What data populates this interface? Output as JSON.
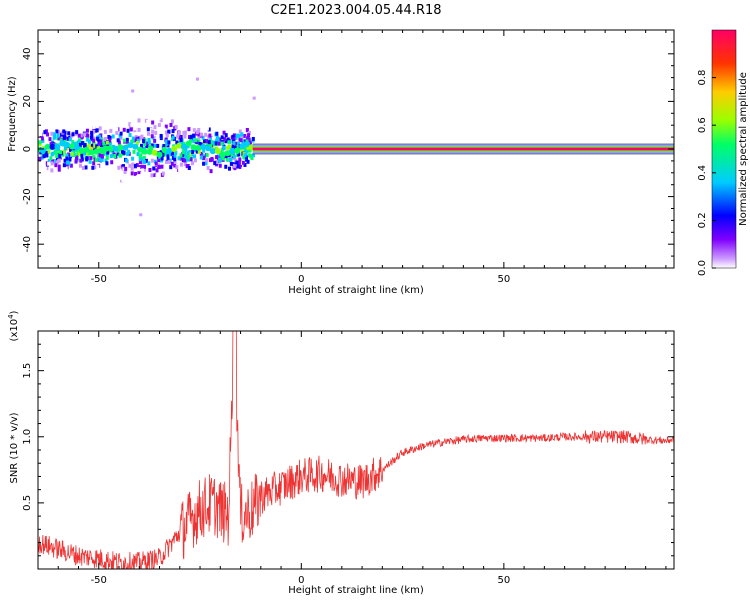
{
  "title": "C2E1.2023.004.05.44.R18",
  "chart_data": [
    {
      "type": "heatmap",
      "title": "",
      "xlabel": "Height of straight line (km)",
      "ylabel": "Frequency (Hz)",
      "xlim": [
        -65,
        92
      ],
      "ylim": [
        -50,
        50
      ],
      "x_ticks": [
        "-50",
        "0",
        "50"
      ],
      "y_ticks": [
        "40",
        "20",
        "0",
        "-20",
        "-40"
      ],
      "colorbar": {
        "label": "Normalized spectral amplitude",
        "range": [
          0,
          1
        ],
        "ticks": [
          "0.0",
          "0.2",
          "0.4",
          "0.6",
          "0.8"
        ],
        "colormap": [
          "#ffffff",
          "#cc99ff",
          "#8000ff",
          "#0000ff",
          "#00ccff",
          "#00ff66",
          "#99ff00",
          "#ffcc00",
          "#ff3300",
          "#ff0066"
        ]
      },
      "ridge": {
        "x_range": [
          -12,
          92
        ],
        "frequency": 0,
        "amplitude": 0.95,
        "note": "strong continuous ridge near 0 Hz"
      },
      "scattered_region": {
        "x_range": [
          -65,
          -12
        ],
        "frequency_spread": [
          -8,
          12
        ],
        "outliers": [
          [
            -42,
            25
          ],
          [
            -40,
            -27
          ],
          [
            -26,
            30
          ],
          [
            -12,
            22
          ]
        ]
      }
    },
    {
      "type": "line",
      "title": "",
      "xlabel": "Height of straight line (km)",
      "ylabel": "SNR (10 * v/v)",
      "y_multiplier": "(x10^4)",
      "xlim": [
        -65,
        92
      ],
      "ylim": [
        0,
        1.8
      ],
      "x_ticks": [
        "-50",
        "0",
        "50"
      ],
      "y_ticks": [
        "0.5",
        "1.0",
        "1.5"
      ],
      "color": "#ee3333",
      "x": [
        -65,
        -60,
        -55,
        -50,
        -45,
        -40,
        -35,
        -32,
        -28,
        -25,
        -22,
        -20,
        -18,
        -16.5,
        -15,
        -12,
        -10,
        -5,
        0,
        5,
        10,
        15,
        20,
        25,
        30,
        35,
        40,
        45,
        50,
        55,
        60,
        65,
        70,
        75,
        80,
        85,
        90,
        92
      ],
      "values": [
        0.2,
        0.15,
        0.1,
        0.08,
        0.05,
        0.05,
        0.08,
        0.2,
        0.35,
        0.45,
        0.5,
        0.45,
        0.4,
        1.8,
        0.4,
        0.45,
        0.55,
        0.62,
        0.7,
        0.72,
        0.68,
        0.66,
        0.75,
        0.88,
        0.93,
        0.96,
        0.98,
        0.99,
        0.99,
        0.99,
        0.99,
        1.0,
        1.0,
        1.0,
        1.0,
        0.98,
        0.97,
        0.98
      ]
    }
  ]
}
